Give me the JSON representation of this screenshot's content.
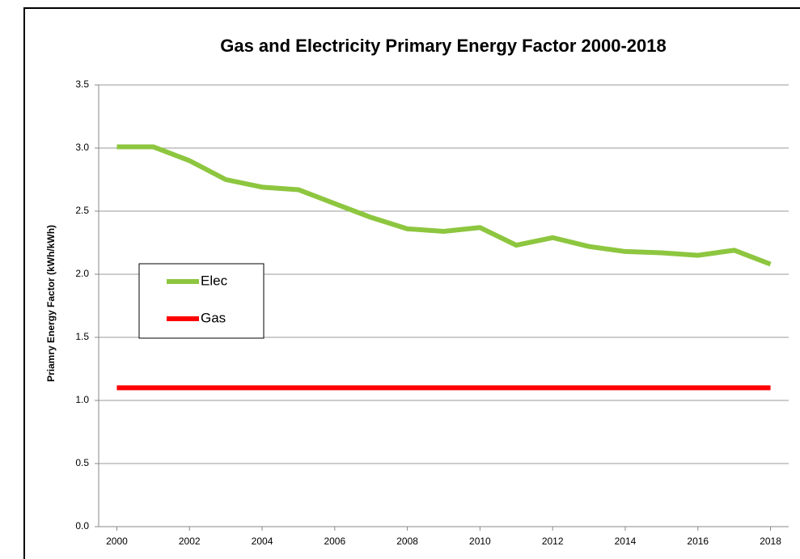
{
  "chart_data": {
    "type": "line",
    "title": "Gas and Electricity Primary Energy Factor 2000-2018",
    "y_label": "Priamry Energy Factor (kWh/kWh)",
    "x": [
      2000,
      2001,
      2002,
      2003,
      2004,
      2005,
      2006,
      2007,
      2008,
      2009,
      2010,
      2011,
      2012,
      2013,
      2014,
      2015,
      2016,
      2017,
      2018
    ],
    "series": [
      {
        "name": "Elec",
        "color": "#8dc63f",
        "values": [
          3.01,
          3.01,
          2.9,
          2.75,
          2.69,
          2.67,
          2.56,
          2.45,
          2.36,
          2.34,
          2.37,
          2.23,
          2.29,
          2.22,
          2.18,
          2.17,
          2.15,
          2.19,
          2.08
        ]
      },
      {
        "name": "Gas",
        "color": "#ff0000",
        "values": [
          1.1,
          1.1,
          1.1,
          1.1,
          1.1,
          1.1,
          1.1,
          1.1,
          1.1,
          1.1,
          1.1,
          1.1,
          1.1,
          1.1,
          1.1,
          1.1,
          1.1,
          1.1,
          1.1
        ]
      }
    ],
    "xlim": [
      1999.5,
      2018.5
    ],
    "xticks": [
      2000,
      2002,
      2004,
      2006,
      2008,
      2010,
      2012,
      2014,
      2016,
      2018
    ],
    "ylim": [
      0,
      3.5
    ],
    "yticks": [
      {
        "value": 0,
        "label": "0.0"
      },
      0.5,
      {
        "value": 1,
        "label": "1.0"
      },
      1.5,
      {
        "value": 2,
        "label": "2.0"
      },
      2.5,
      {
        "value": 3,
        "label": "3.0"
      },
      3.5
    ],
    "grid": true,
    "legend": "left"
  }
}
